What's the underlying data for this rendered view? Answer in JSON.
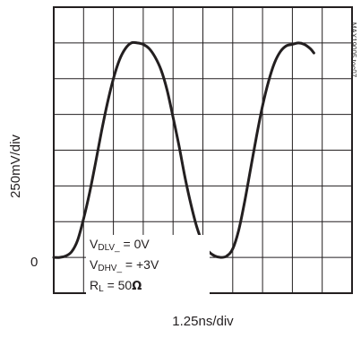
{
  "chart_data": {
    "type": "line",
    "xlabel": "1.25ns/div",
    "ylabel": "250mV/div",
    "y_zero_label": "0",
    "part_number": "MAX19005 toc07",
    "grid": true,
    "divisions": {
      "x": 10,
      "y": 8
    },
    "x_unit": "ns",
    "y_unit": "V",
    "xlim": [
      0,
      12.5
    ],
    "ylim": [
      -0.25,
      1.75
    ],
    "legend": {
      "line1": {
        "main": "V",
        "sub": "DLV_",
        "tail": " = 0V"
      },
      "line2": {
        "main": "V",
        "sub": "DHV_",
        "tail": " = +3V"
      },
      "line3": {
        "main": "R",
        "sub": "L",
        "tail": " = 50",
        "unit": "Ω"
      }
    },
    "series": [
      {
        "color": "#231f20",
        "points": [
          [
            0.0,
            0.0
          ],
          [
            0.25,
            0.0
          ],
          [
            0.5,
            0.01
          ],
          [
            0.75,
            0.04
          ],
          [
            1.0,
            0.12
          ],
          [
            1.25,
            0.27
          ],
          [
            1.5,
            0.45
          ],
          [
            1.75,
            0.66
          ],
          [
            2.0,
            0.88
          ],
          [
            2.25,
            1.08
          ],
          [
            2.5,
            1.25
          ],
          [
            2.75,
            1.38
          ],
          [
            3.0,
            1.46
          ],
          [
            3.25,
            1.5
          ],
          [
            3.5,
            1.5
          ],
          [
            3.75,
            1.49
          ],
          [
            4.0,
            1.46
          ],
          [
            4.25,
            1.4
          ],
          [
            4.5,
            1.31
          ],
          [
            4.75,
            1.17
          ],
          [
            5.0,
            0.98
          ],
          [
            5.25,
            0.78
          ],
          [
            5.5,
            0.56
          ],
          [
            5.75,
            0.37
          ],
          [
            6.0,
            0.21
          ],
          [
            6.25,
            0.1
          ],
          [
            6.5,
            0.04
          ],
          [
            6.75,
            0.01
          ],
          [
            7.0,
            0.0
          ],
          [
            7.25,
            0.01
          ],
          [
            7.5,
            0.06
          ],
          [
            7.75,
            0.19
          ],
          [
            8.0,
            0.39
          ],
          [
            8.25,
            0.62
          ],
          [
            8.5,
            0.85
          ],
          [
            8.75,
            1.06
          ],
          [
            9.0,
            1.23
          ],
          [
            9.25,
            1.36
          ],
          [
            9.5,
            1.44
          ],
          [
            9.75,
            1.48
          ],
          [
            10.0,
            1.49
          ],
          [
            10.25,
            1.5
          ],
          [
            10.5,
            1.49
          ],
          [
            10.75,
            1.46
          ],
          [
            10.9,
            1.43
          ]
        ]
      }
    ]
  }
}
